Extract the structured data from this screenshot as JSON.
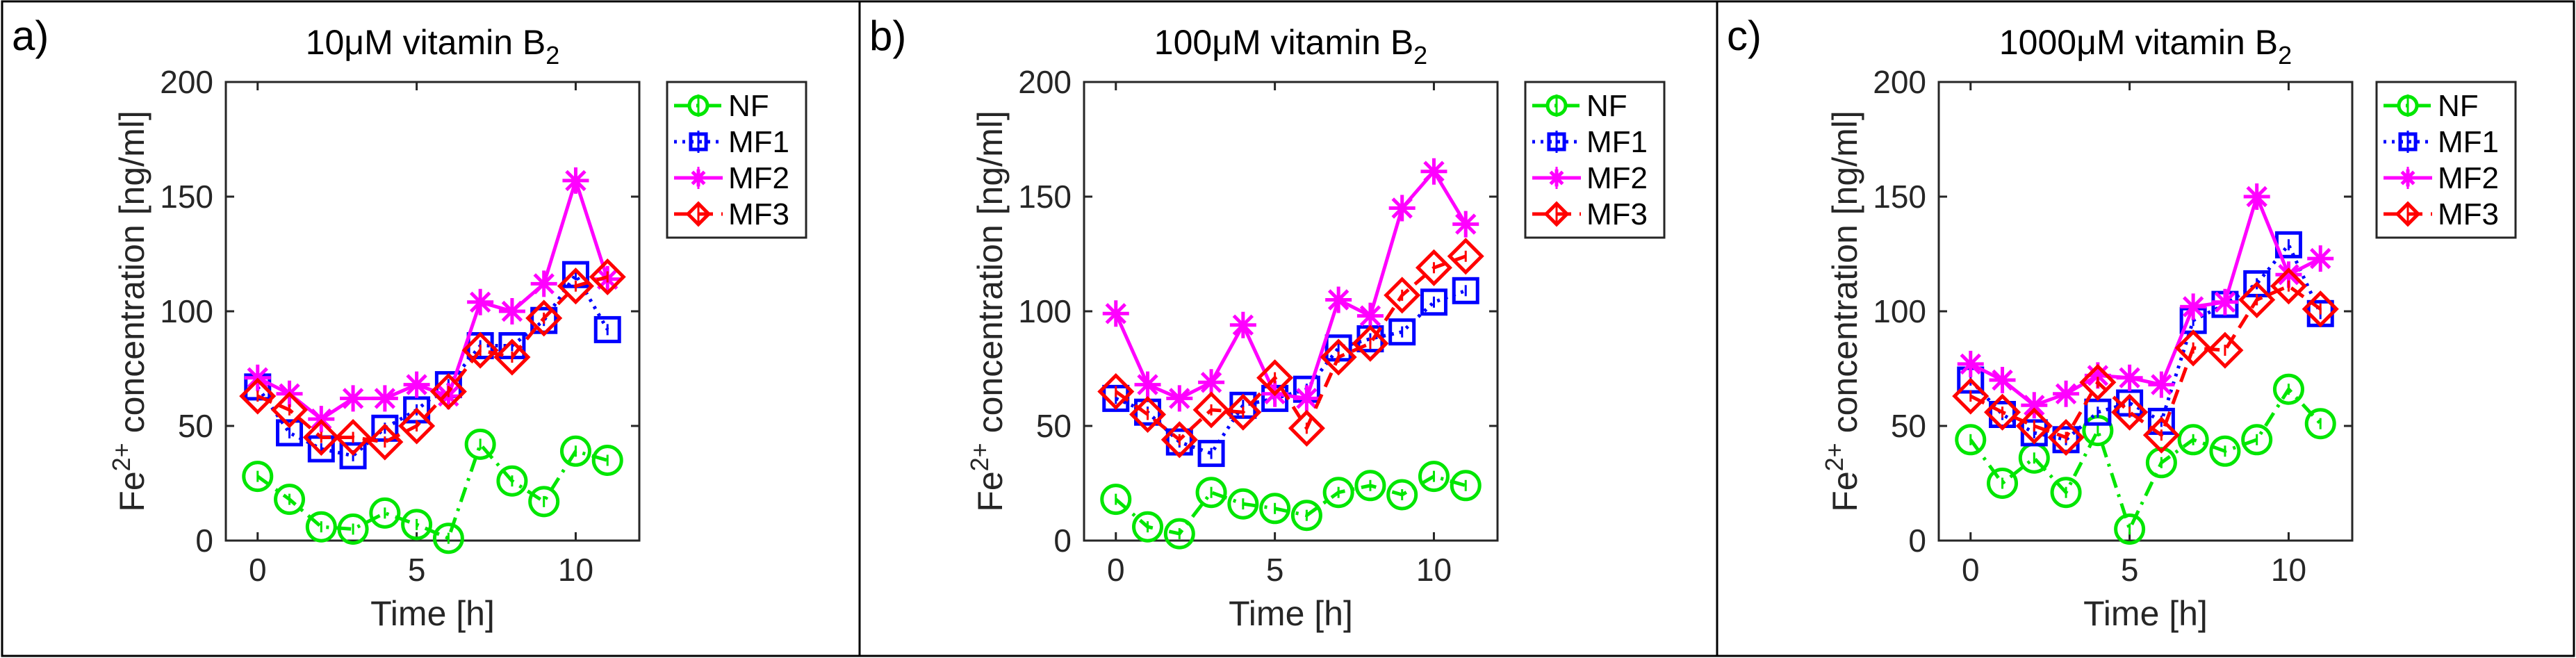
{
  "chart_data": [
    {
      "type": "line",
      "panel_label": "a)",
      "title": "10μM vitamin B",
      "title_subscript": "2",
      "xlabel": "Time [h]",
      "ylabel": "Fe",
      "ylabel_superscript": "2+",
      "ylabel_suffix": " concentration [ng/ml]",
      "xlim": [
        -1,
        12
      ],
      "ylim": [
        0,
        200
      ],
      "xticks": [
        0,
        5,
        10
      ],
      "yticks": [
        0,
        50,
        100,
        150,
        200
      ],
      "grid": false,
      "legend_position": "top-right",
      "x": [
        0,
        1,
        2,
        3,
        4,
        5,
        6,
        7,
        8,
        9,
        10,
        11
      ],
      "series": [
        {
          "name": "NF",
          "color": "#00e600",
          "linestyle": "dash-dot",
          "marker": "circle",
          "values": [
            28,
            18,
            6,
            5,
            12,
            7,
            1,
            42,
            26,
            17,
            39,
            35
          ]
        },
        {
          "name": "MF1",
          "color": "#0000ff",
          "linestyle": "dotted",
          "marker": "square",
          "values": [
            67,
            47,
            40,
            37,
            49,
            57,
            68,
            85,
            85,
            96,
            116,
            92
          ]
        },
        {
          "name": "MF2",
          "color": "#ff00ff",
          "linestyle": "solid",
          "marker": "asterisk",
          "values": [
            71,
            64,
            53,
            62,
            62,
            68,
            63,
            104,
            100,
            112,
            157,
            114
          ]
        },
        {
          "name": "MF3",
          "color": "#ff0000",
          "linestyle": "dashed",
          "marker": "diamond",
          "values": [
            63,
            57,
            45,
            45,
            43,
            50,
            65,
            83,
            80,
            97,
            111,
            115
          ]
        }
      ]
    },
    {
      "type": "line",
      "panel_label": "b)",
      "title": "100μM vitamin B",
      "title_subscript": "2",
      "xlabel": "Time [h]",
      "ylabel": "Fe",
      "ylabel_superscript": "2+",
      "ylabel_suffix": " concentration [ng/ml]",
      "xlim": [
        -1,
        12
      ],
      "ylim": [
        0,
        200
      ],
      "xticks": [
        0,
        5,
        10
      ],
      "yticks": [
        0,
        50,
        100,
        150,
        200
      ],
      "grid": false,
      "legend_position": "top-right",
      "x": [
        0,
        1,
        2,
        3,
        4,
        5,
        6,
        7,
        8,
        9,
        10,
        11
      ],
      "series": [
        {
          "name": "NF",
          "color": "#00e600",
          "linestyle": "dash-dot",
          "marker": "circle",
          "values": [
            18,
            6,
            3,
            21,
            16,
            14,
            11,
            21,
            24,
            20,
            28,
            24
          ]
        },
        {
          "name": "MF1",
          "color": "#0000ff",
          "linestyle": "dotted",
          "marker": "square",
          "values": [
            62,
            56,
            43,
            38,
            59,
            62,
            66,
            84,
            88,
            91,
            104,
            109
          ]
        },
        {
          "name": "MF2",
          "color": "#ff00ff",
          "linestyle": "solid",
          "marker": "asterisk",
          "values": [
            99,
            68,
            62,
            69,
            94,
            64,
            62,
            105,
            98,
            145,
            161,
            138
          ]
        },
        {
          "name": "MF3",
          "color": "#ff0000",
          "linestyle": "dashed",
          "marker": "diamond",
          "values": [
            65,
            55,
            44,
            57,
            56,
            71,
            49,
            80,
            86,
            107,
            119,
            124
          ]
        }
      ]
    },
    {
      "type": "line",
      "panel_label": "c)",
      "title": "1000μM vitamin B",
      "title_subscript": "2",
      "xlabel": "Time [h]",
      "ylabel": "Fe",
      "ylabel_superscript": "2+",
      "ylabel_suffix": " concentration [ng/ml]",
      "xlim": [
        -1,
        12
      ],
      "ylim": [
        0,
        200
      ],
      "xticks": [
        0,
        5,
        10
      ],
      "yticks": [
        0,
        50,
        100,
        150,
        200
      ],
      "grid": false,
      "legend_position": "top-right",
      "x": [
        0,
        1,
        2,
        3,
        4,
        5,
        6,
        7,
        8,
        9,
        10,
        11
      ],
      "series": [
        {
          "name": "NF",
          "color": "#00e600",
          "linestyle": "dash-dot",
          "marker": "circle",
          "values": [
            44,
            25,
            36,
            21,
            48,
            5,
            34,
            44,
            39,
            44,
            66,
            51
          ]
        },
        {
          "name": "MF1",
          "color": "#0000ff",
          "linestyle": "dotted",
          "marker": "square",
          "values": [
            70,
            55,
            47,
            44,
            56,
            60,
            52,
            96,
            103,
            112,
            129,
            99
          ]
        },
        {
          "name": "MF2",
          "color": "#ff00ff",
          "linestyle": "solid",
          "marker": "asterisk",
          "values": [
            77,
            70,
            59,
            64,
            72,
            71,
            68,
            102,
            104,
            150,
            116,
            123
          ]
        },
        {
          "name": "MF3",
          "color": "#ff0000",
          "linestyle": "dashed",
          "marker": "diamond",
          "values": [
            63,
            56,
            50,
            45,
            69,
            56,
            46,
            84,
            83,
            105,
            111,
            101
          ]
        }
      ]
    }
  ]
}
